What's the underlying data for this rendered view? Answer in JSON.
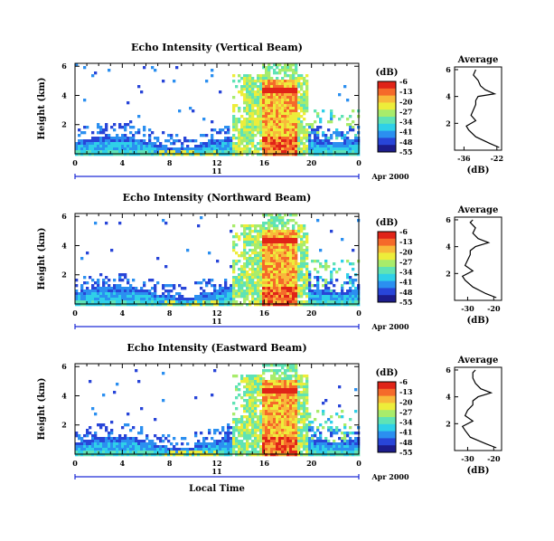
{
  "colors": {
    "colormap": [
      "#1c1c8c",
      "#2845d8",
      "#2b8ff0",
      "#2fd0e8",
      "#5fe3b5",
      "#a8ec6b",
      "#eded3a",
      "#f8b93a",
      "#f56a2a",
      "#e02418"
    ],
    "date_axis": "#1d2bd6",
    "frame": "#000000"
  },
  "chart_data": [
    {
      "type": "heatmap",
      "title": "Echo Intensity (Vertical Beam)",
      "ylabel": "Height (km)",
      "x_ticks": [
        "0",
        "4",
        "8",
        "12",
        "16",
        "20",
        "0"
      ],
      "y_ticks": [
        "6",
        "4",
        "2"
      ],
      "xlim": [
        0,
        24
      ],
      "ylim": [
        0,
        6.2
      ],
      "date_label": "11",
      "date_suffix": "Apr 2000",
      "colorbar": {
        "label": "(dB)",
        "ticks": [
          "-6",
          "-13",
          "-20",
          "-27",
          "-34",
          "-41",
          "-48",
          "-55"
        ]
      },
      "profile": {
        "title": "Average",
        "xlabel": "(dB)",
        "x_ticks": [
          "-36",
          "-22"
        ],
        "y_ticks": [
          "6",
          "4",
          "2"
        ],
        "xlim": [
          -40,
          -20
        ],
        "ylim": [
          0,
          6.2
        ],
        "height_km": [
          0.2,
          0.5,
          1.0,
          1.5,
          1.8,
          2.2,
          2.6,
          3.0,
          3.4,
          3.7,
          4.0,
          4.2,
          4.5,
          4.8,
          5.2,
          5.6,
          6.0
        ],
        "db": [
          -21,
          -25,
          -31,
          -34,
          -35,
          -31,
          -33,
          -32,
          -31,
          -31,
          -30,
          -23,
          -27,
          -29,
          -30,
          -32,
          -31
        ]
      }
    },
    {
      "type": "heatmap",
      "title": "Echo Intensity (Northward Beam)",
      "ylabel": "Height (km)",
      "x_ticks": [
        "0",
        "4",
        "8",
        "12",
        "16",
        "20",
        "0"
      ],
      "y_ticks": [
        "6",
        "4",
        "2"
      ],
      "xlim": [
        0,
        24
      ],
      "ylim": [
        0,
        6.2
      ],
      "date_label": "11",
      "date_suffix": "Apr 2000",
      "colorbar": {
        "label": "(dB)",
        "ticks": [
          "-6",
          "-13",
          "-20",
          "-27",
          "-34",
          "-41",
          "-48",
          "-55"
        ]
      },
      "profile": {
        "title": "Average",
        "xlabel": "(dB)",
        "x_ticks": [
          "-30",
          "-20"
        ],
        "y_ticks": [
          "6",
          "4",
          "2"
        ],
        "xlim": [
          -35,
          -17
        ],
        "ylim": [
          0,
          6.2
        ],
        "height_km": [
          0.2,
          0.5,
          1.0,
          1.5,
          1.8,
          2.2,
          2.6,
          3.0,
          3.4,
          3.7,
          4.0,
          4.3,
          4.6,
          5.0,
          5.4,
          5.8,
          6.0
        ],
        "db": [
          -19,
          -23,
          -28,
          -31,
          -32,
          -28,
          -31,
          -30,
          -29,
          -29,
          -27,
          -22,
          -26,
          -28,
          -27,
          -29,
          -28
        ]
      }
    },
    {
      "type": "heatmap",
      "title": "Echo Intensity (Eastward Beam)",
      "ylabel": "Height (km)",
      "x_ticks": [
        "0",
        "4",
        "8",
        "12",
        "16",
        "20",
        "0"
      ],
      "y_ticks": [
        "6",
        "4",
        "2"
      ],
      "xlim": [
        0,
        24
      ],
      "ylim": [
        0,
        6.2
      ],
      "date_label": "11",
      "date_suffix": "Apr 2000",
      "xlabel": "Local Time",
      "colorbar": {
        "label": "(dB)",
        "ticks": [
          "-6",
          "-13",
          "-20",
          "-27",
          "-34",
          "-41",
          "-48",
          "-55"
        ]
      },
      "profile": {
        "title": "Average",
        "xlabel": "(dB)",
        "x_ticks": [
          "-30",
          "-20"
        ],
        "y_ticks": [
          "6",
          "4",
          "2"
        ],
        "xlim": [
          -35,
          -17
        ],
        "ylim": [
          0,
          6.2
        ],
        "height_km": [
          0.2,
          0.5,
          1.0,
          1.5,
          1.8,
          2.2,
          2.6,
          3.0,
          3.4,
          3.7,
          4.0,
          4.3,
          4.6,
          5.0,
          5.4,
          5.8,
          6.0
        ],
        "db": [
          -19,
          -23,
          -29,
          -31,
          -32,
          -28,
          -31,
          -30,
          -28,
          -28,
          -26,
          -21,
          -25,
          -27,
          -28,
          -28,
          -27
        ]
      }
    }
  ]
}
